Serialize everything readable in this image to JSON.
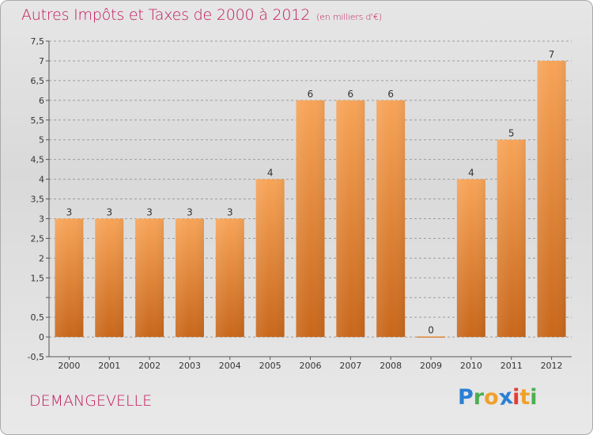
{
  "header": {
    "title": "Autres Impôts et Taxes de 2000 à 2012",
    "subtitle": "(en milliers d'€)"
  },
  "footer": {
    "commune": "DEMANGEVELLE",
    "logo_text": "Proxiti"
  },
  "colors": {
    "title": "#c2185b",
    "bar_top": "#f7a458",
    "bar_bottom": "#c8671b",
    "grid": "#a0a0a0"
  },
  "chart_data": {
    "type": "bar",
    "categories": [
      "2000",
      "2001",
      "2002",
      "2003",
      "2004",
      "2005",
      "2006",
      "2007",
      "2008",
      "2009",
      "2010",
      "2011",
      "2012"
    ],
    "values": [
      3,
      3,
      3,
      3,
      3,
      4,
      6,
      6,
      6,
      0,
      4,
      5,
      7
    ],
    "data_labels": [
      "3",
      "3",
      "3",
      "3",
      "3",
      "4",
      "6",
      "6",
      "6",
      "0",
      "4",
      "5",
      "7"
    ],
    "ylim": [
      -0.5,
      7.5
    ],
    "yticks": [
      -0.5,
      0,
      0.5,
      1,
      1.5,
      2,
      2.5,
      3,
      3.5,
      4,
      4.5,
      5,
      5.5,
      6,
      6.5,
      7,
      7.5
    ],
    "ytick_labels": [
      "-0,5",
      "0",
      "0,5",
      "",
      "1,5",
      "2",
      "2,5",
      "3",
      "3,5",
      "4",
      "4,5",
      "5",
      "5,5",
      "6",
      "6,5",
      "7",
      "7,5"
    ],
    "grid": "horizontal dashed",
    "xlabel": "",
    "ylabel": ""
  }
}
